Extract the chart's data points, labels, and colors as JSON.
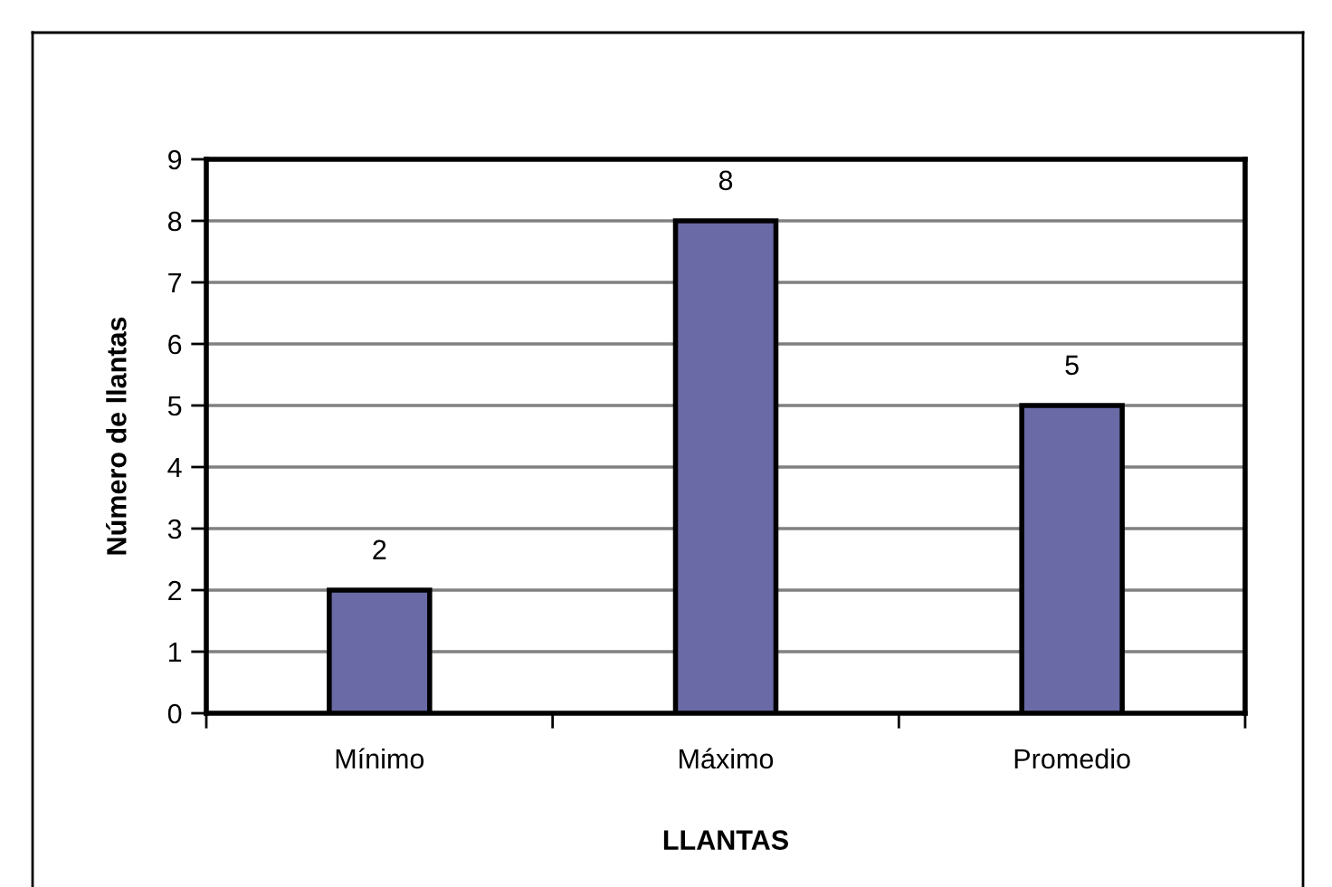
{
  "chart_data": {
    "type": "bar",
    "categories": [
      "Mínimo",
      "Máximo",
      "Promedio"
    ],
    "values": [
      2,
      8,
      5
    ],
    "color": "#6a6aa6",
    "xlabel": "LLANTAS",
    "ylabel": "Número de llantas",
    "ylim": [
      0,
      9
    ],
    "yticks": [
      0,
      1,
      2,
      3,
      4,
      5,
      6,
      7,
      8,
      9
    ],
    "grid": "y",
    "data_labels": true
  }
}
